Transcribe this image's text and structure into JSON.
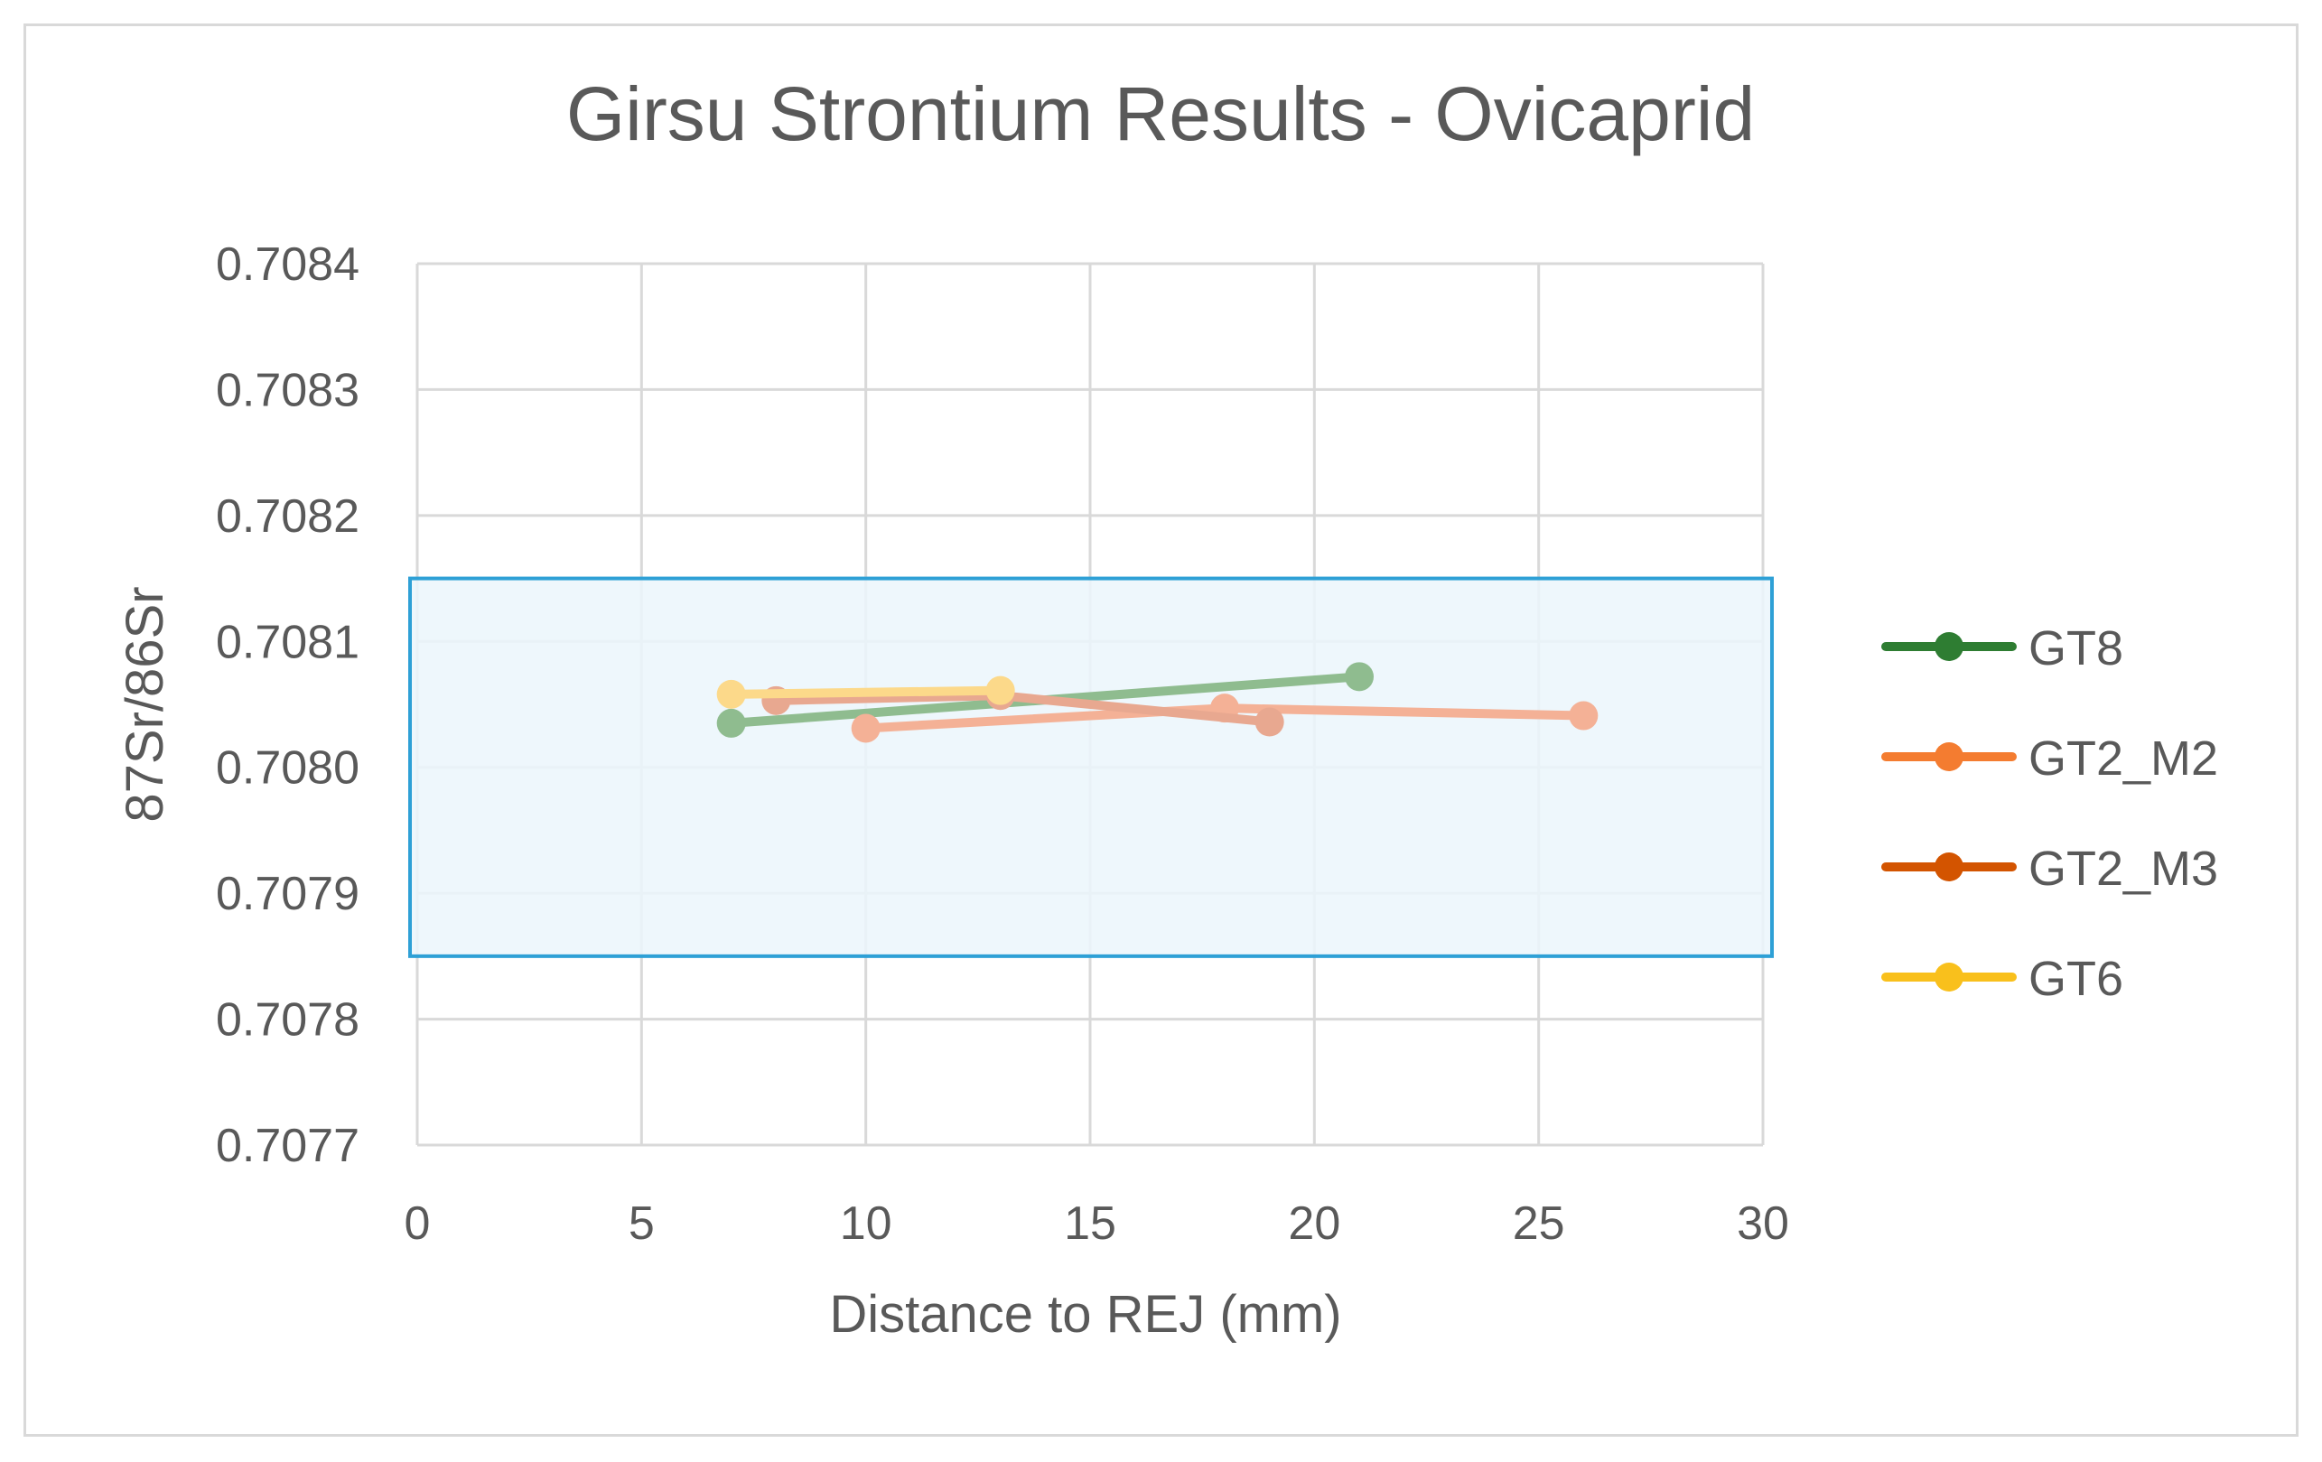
{
  "chart_data": {
    "type": "line",
    "title": "Girsu Strontium Results - Ovicaprid",
    "xlabel": "Distance to REJ (mm)",
    "ylabel": "87Sr/86Sr",
    "xlim": [
      0,
      30
    ],
    "ylim": [
      0.7077,
      0.7084
    ],
    "x_ticks": [
      0,
      5,
      10,
      15,
      20,
      25,
      30
    ],
    "x_tick_labels": [
      "0",
      "5",
      "10",
      "15",
      "20",
      "25",
      "30"
    ],
    "y_ticks": [
      0.7077,
      0.7078,
      0.7079,
      0.708,
      0.7081,
      0.7082,
      0.7083,
      0.7084
    ],
    "y_tick_labels": [
      "0.7077",
      "0.7078",
      "0.7079",
      "0.7080",
      "0.7081",
      "0.7082",
      "0.7083",
      "0.7084"
    ],
    "grid": true,
    "legend_position": "right",
    "shaded_range": {
      "y_min": 0.70785,
      "y_max": 0.70815,
      "fill": "#ebf6fc",
      "stroke": "#2ea0d6"
    },
    "series": [
      {
        "name": "GT8",
        "color": "#2e7d32",
        "plot_color": "#8fbc8f",
        "x": [
          7,
          21
        ],
        "y": [
          0.708035,
          0.708072
        ]
      },
      {
        "name": "GT2_M2",
        "color": "#f47c30",
        "plot_color": "#f4b196",
        "x": [
          10,
          18,
          26
        ],
        "y": [
          0.708031,
          0.708047,
          0.708041
        ]
      },
      {
        "name": "GT2_M3",
        "color": "#d35400",
        "plot_color": "#e8a890",
        "x": [
          8,
          13,
          19
        ],
        "y": [
          0.708053,
          0.708057,
          0.708036
        ]
      },
      {
        "name": "GT6",
        "color": "#f9c01c",
        "plot_color": "#fcd98a",
        "x": [
          7,
          13
        ],
        "y": [
          0.708058,
          0.708061
        ]
      }
    ]
  }
}
